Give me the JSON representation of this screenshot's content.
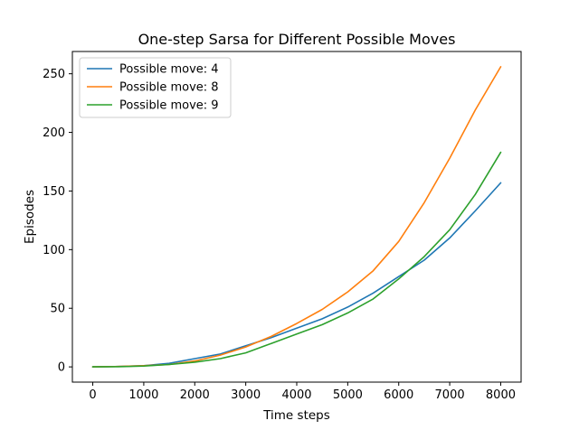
{
  "chart_data": {
    "type": "line",
    "title": "One-step Sarsa for Different Possible Moves",
    "xlabel": "Time steps",
    "ylabel": "Episodes",
    "xlim": [
      -400,
      8400
    ],
    "ylim": [
      -13,
      269
    ],
    "xticks": [
      0,
      1000,
      2000,
      3000,
      4000,
      5000,
      6000,
      7000,
      8000
    ],
    "yticks": [
      0,
      50,
      100,
      150,
      200,
      250
    ],
    "grid": false,
    "legend_position": "upper-left",
    "series": [
      {
        "name": "Possible move: 4",
        "color": "#1f77b4",
        "x": [
          0,
          500,
          1000,
          1500,
          2000,
          2500,
          3000,
          3500,
          4000,
          4500,
          5000,
          5500,
          6000,
          6500,
          7000,
          7500,
          8000
        ],
        "y": [
          0,
          0.3,
          1,
          3,
          7,
          11,
          18,
          25,
          33,
          41,
          51,
          63,
          77,
          91,
          110,
          133,
          157
        ]
      },
      {
        "name": "Possible move: 8",
        "color": "#ff7f0e",
        "x": [
          0,
          500,
          1000,
          1500,
          2000,
          2500,
          3000,
          3500,
          4000,
          4500,
          5000,
          5500,
          6000,
          6500,
          7000,
          7500,
          8000
        ],
        "y": [
          0,
          0.3,
          1,
          2,
          5,
          10,
          17,
          26,
          37,
          49,
          64,
          82,
          107,
          140,
          178,
          219,
          256
        ]
      },
      {
        "name": "Possible move: 9",
        "color": "#2ca02c",
        "x": [
          0,
          500,
          1000,
          1500,
          2000,
          2500,
          3000,
          3500,
          4000,
          4500,
          5000,
          5500,
          6000,
          6500,
          7000,
          7500,
          8000
        ],
        "y": [
          0,
          0.2,
          0.7,
          2,
          4,
          7,
          12,
          20,
          28,
          36,
          46,
          58,
          75,
          94,
          117,
          147,
          183
        ]
      }
    ]
  }
}
